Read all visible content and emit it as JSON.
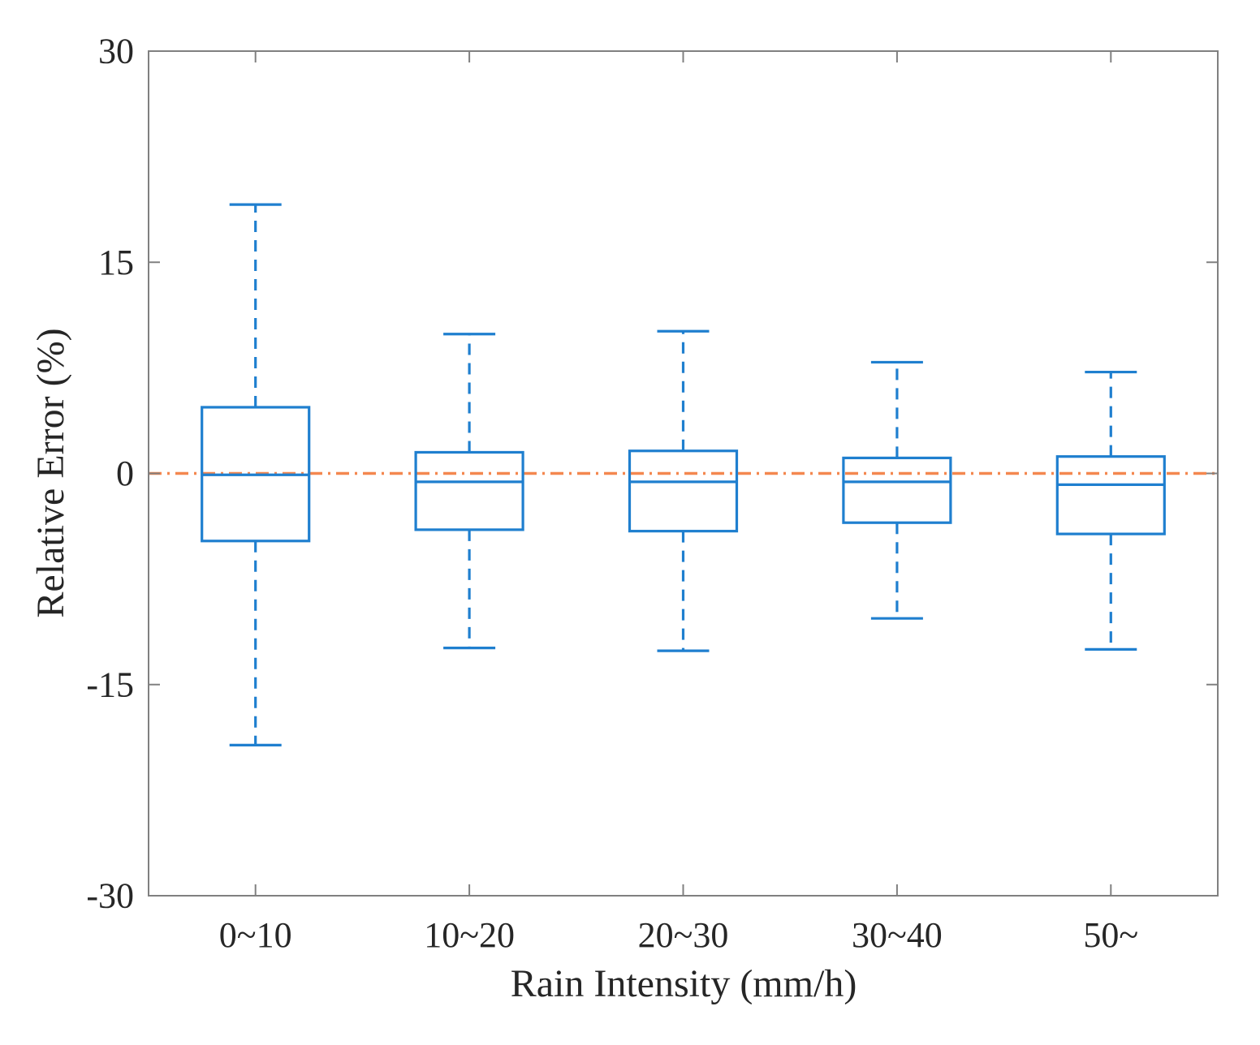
{
  "chart_data": {
    "type": "box",
    "title": "",
    "xlabel": "Rain Intensity (mm/h)",
    "ylabel": "Relative Error (%)",
    "ylim": [
      -30,
      30
    ],
    "yticks": [
      -30,
      -15,
      0,
      15,
      30
    ],
    "ytick_labels": [
      "-30",
      "-15",
      "0",
      "15",
      "30"
    ],
    "categories": [
      "0~10",
      "10~20",
      "20~30",
      "30~40",
      "50~"
    ],
    "boxes": [
      {
        "category": "0~10",
        "whisker_low": -19.3,
        "q1": -4.8,
        "median": -0.1,
        "q3": 4.7,
        "whisker_high": 19.1
      },
      {
        "category": "10~20",
        "whisker_low": -12.4,
        "q1": -4.0,
        "median": -0.6,
        "q3": 1.5,
        "whisker_high": 9.9
      },
      {
        "category": "20~30",
        "whisker_low": -12.6,
        "q1": -4.1,
        "median": -0.6,
        "q3": 1.6,
        "whisker_high": 10.1
      },
      {
        "category": "30~40",
        "whisker_low": -10.3,
        "q1": -3.5,
        "median": -0.6,
        "q3": 1.1,
        "whisker_high": 7.9
      },
      {
        "category": "50~",
        "whisker_low": -12.5,
        "q1": -4.3,
        "median": -0.8,
        "q3": 1.2,
        "whisker_high": 7.2
      }
    ],
    "reference_line": {
      "y": 0,
      "style": "dash-dot",
      "color": "#f4874f"
    },
    "box_color": "#1f7fcf",
    "axis_color": "#808080",
    "grid": false,
    "box_frame": true
  }
}
